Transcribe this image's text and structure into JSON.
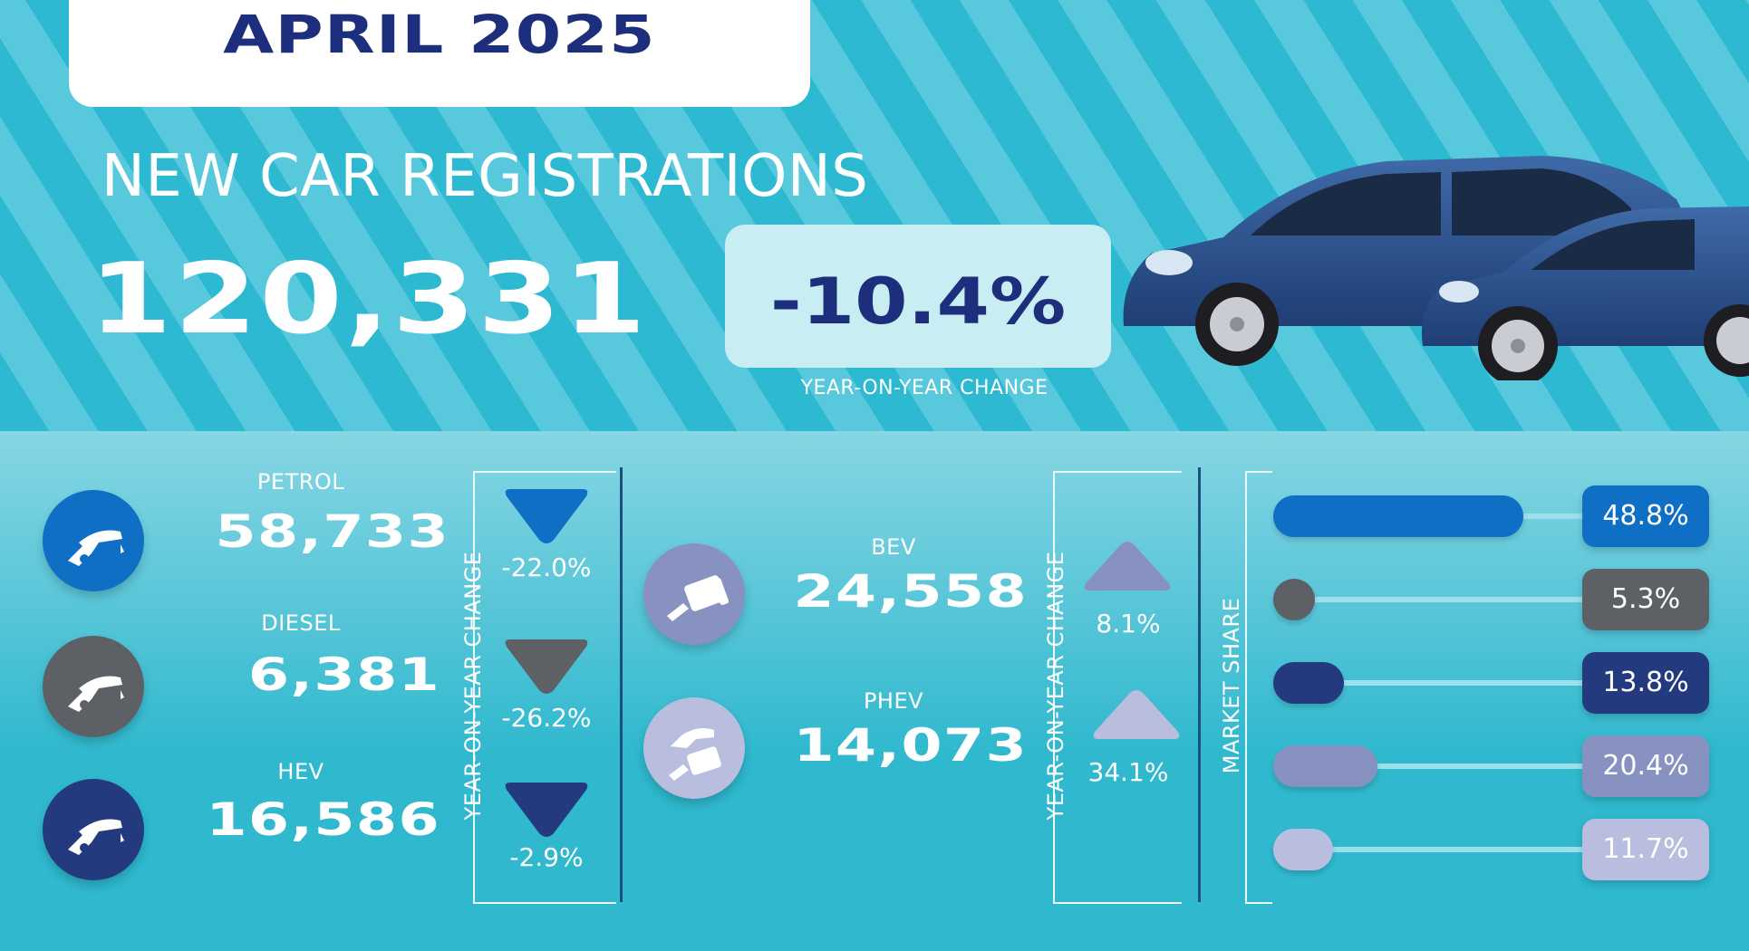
{
  "header": {
    "month": "APRIL 2025",
    "title": "NEW CAR REGISTRATIONS",
    "total": "120,331",
    "yoy_change": "-10.4%",
    "yoy_label": "YEAR-ON-YEAR CHANGE"
  },
  "labels": {
    "yoy_axis": "YEAR-ON-YEAR CHANGE",
    "share_axis": "MARKET SHARE"
  },
  "colors": {
    "petrol": "#0f6fc4",
    "diesel": "#5d6166",
    "hev": "#243a7f",
    "bev": "#8892c0",
    "phev": "#b9bedf",
    "navy": "#1d2f7c"
  },
  "chart_data": {
    "type": "bar",
    "categories": [
      "PETROL",
      "DIESEL",
      "HEV",
      "BEV",
      "PHEV"
    ],
    "registrations": [
      58733,
      6381,
      16586,
      24558,
      14073
    ],
    "registrations_text": [
      "58,733",
      "6,381",
      "16,586",
      "24,558",
      "14,073"
    ],
    "yoy_change": [
      -22.0,
      -26.2,
      -2.9,
      8.1,
      34.1
    ],
    "yoy_change_text": [
      "-22.0%",
      "-26.2%",
      "-2.9%",
      "8.1%",
      "34.1%"
    ],
    "market_share": [
      48.8,
      5.3,
      13.8,
      20.4,
      11.7
    ],
    "market_share_text": [
      "48.8%",
      "5.3%",
      "13.8%",
      "20.4%",
      "11.7%"
    ],
    "xlim": [
      0,
      100
    ]
  }
}
